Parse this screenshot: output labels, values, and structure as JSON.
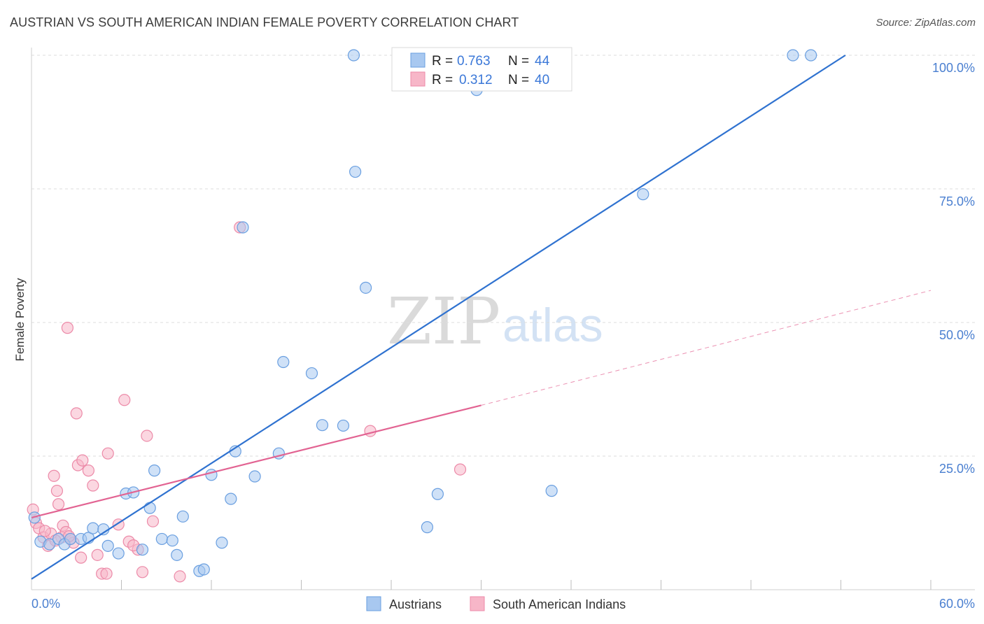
{
  "title": "AUSTRIAN VS SOUTH AMERICAN INDIAN FEMALE POVERTY CORRELATION CHART",
  "source": "Source: ZipAtlas.com",
  "watermark": {
    "part1": "ZIP",
    "part2": "atlas"
  },
  "colors": {
    "blue_fill": "#a8c8f0",
    "blue_stroke": "#6a9fe0",
    "blue_line": "#2f72d0",
    "pink_fill": "#f7b6c8",
    "pink_stroke": "#ec8aa8",
    "pink_line": "#e26392",
    "grid": "#dddddd",
    "tick_label": "#4a7fd0"
  },
  "legend": {
    "rows": [
      {
        "r_label": "R =",
        "r_value": "0.763",
        "n_label": "N =",
        "n_value": "44"
      },
      {
        "r_label": "R =",
        "r_value": "0.312",
        "n_label": "N =",
        "n_value": "40"
      }
    ]
  },
  "chart_data": {
    "type": "scatter",
    "title": "AUSTRIAN VS SOUTH AMERICAN INDIAN FEMALE POVERTY CORRELATION CHART",
    "xlabel": "",
    "ylabel": "Female Poverty",
    "xlim": [
      0,
      60
    ],
    "ylim": [
      0,
      100
    ],
    "x_tick_labels": [
      "0.0%",
      "60.0%"
    ],
    "y_tick_labels": [
      "100.0%",
      "75.0%",
      "50.0%",
      "25.0%"
    ],
    "y_tick_values": [
      100,
      75,
      50,
      25
    ],
    "grid": true,
    "legend_position": "bottom",
    "series": [
      {
        "name": "Austrians",
        "r": 0.763,
        "n": 44,
        "trend": {
          "x0": 0,
          "y0": 2,
          "x1": 54.3,
          "y1": 100,
          "extended": false
        },
        "points": [
          [
            0.2,
            13.5
          ],
          [
            0.6,
            9
          ],
          [
            1.2,
            8.5
          ],
          [
            1.8,
            9.5
          ],
          [
            2.2,
            8.5
          ],
          [
            2.6,
            9.5
          ],
          [
            3.3,
            9.5
          ],
          [
            3.8,
            9.7
          ],
          [
            4.1,
            11.5
          ],
          [
            4.8,
            11.3
          ],
          [
            5.1,
            8.2
          ],
          [
            5.8,
            6.8
          ],
          [
            6.3,
            18
          ],
          [
            6.8,
            18.2
          ],
          [
            7.4,
            7.5
          ],
          [
            7.9,
            15.3
          ],
          [
            8.2,
            22.3
          ],
          [
            8.7,
            9.5
          ],
          [
            9.4,
            9.2
          ],
          [
            9.7,
            6.5
          ],
          [
            10.1,
            13.7
          ],
          [
            11.2,
            3.5
          ],
          [
            11.5,
            3.8
          ],
          [
            12.0,
            21.5
          ],
          [
            12.7,
            8.8
          ],
          [
            13.3,
            17
          ],
          [
            13.6,
            25.9
          ],
          [
            14.1,
            67.8
          ],
          [
            14.9,
            21.2
          ],
          [
            16.5,
            25.5
          ],
          [
            16.8,
            42.6
          ],
          [
            18.7,
            40.5
          ],
          [
            19.4,
            30.8
          ],
          [
            20.8,
            30.7
          ],
          [
            21.5,
            100
          ],
          [
            21.6,
            78.2
          ],
          [
            22.3,
            56.5
          ],
          [
            26.4,
            11.7
          ],
          [
            27.1,
            17.9
          ],
          [
            29.7,
            93.5
          ],
          [
            34.7,
            18.5
          ],
          [
            40.8,
            74
          ],
          [
            50.8,
            100
          ],
          [
            52.0,
            100
          ]
        ]
      },
      {
        "name": "South American Indians",
        "r": 0.312,
        "n": 40,
        "trend": {
          "x0": 0,
          "y0": 13.5,
          "x1": 30,
          "y1": 34.5,
          "extended": true,
          "x_ext": 60,
          "y_ext": 56
        },
        "points": [
          [
            0.1,
            15
          ],
          [
            0.3,
            12.5
          ],
          [
            0.5,
            11.5
          ],
          [
            0.8,
            9.8
          ],
          [
            1.1,
            8.2
          ],
          [
            1.3,
            10.5
          ],
          [
            1.5,
            21.3
          ],
          [
            1.7,
            18.5
          ],
          [
            1.8,
            16
          ],
          [
            2.0,
            9.8
          ],
          [
            2.1,
            12
          ],
          [
            2.3,
            10.8
          ],
          [
            2.4,
            49
          ],
          [
            2.6,
            9.5
          ],
          [
            2.8,
            8.8
          ],
          [
            3.0,
            33
          ],
          [
            3.1,
            23.3
          ],
          [
            3.3,
            6
          ],
          [
            3.4,
            24.2
          ],
          [
            3.8,
            22.3
          ],
          [
            4.1,
            19.5
          ],
          [
            4.7,
            3
          ],
          [
            5.0,
            3
          ],
          [
            5.1,
            25.5
          ],
          [
            5.8,
            12.2
          ],
          [
            6.2,
            35.5
          ],
          [
            6.5,
            9
          ],
          [
            7.1,
            7.5
          ],
          [
            7.4,
            3.3
          ],
          [
            7.7,
            28.8
          ],
          [
            8.1,
            12.8
          ],
          [
            9.9,
            2.5
          ],
          [
            13.9,
            67.8
          ],
          [
            22.6,
            29.7
          ],
          [
            28.6,
            22.5
          ],
          [
            0.9,
            11
          ],
          [
            1.6,
            9.2
          ],
          [
            2.5,
            10
          ],
          [
            4.4,
            6.5
          ],
          [
            6.8,
            8.3
          ]
        ]
      }
    ]
  }
}
